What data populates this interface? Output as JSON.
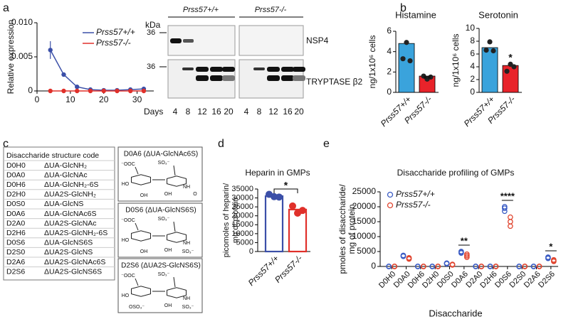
{
  "panels": [
    "a",
    "b",
    "c",
    "d",
    "e"
  ],
  "blot": {
    "kda_label": "kDa",
    "size_markers": [
      "36",
      "36"
    ],
    "genotypes": [
      "Prss57+/+",
      "Prss57-/-"
    ],
    "bands": [
      "NSP4",
      "TRYPTASE β2"
    ],
    "days_label": "Days",
    "days": [
      4,
      8,
      12,
      16,
      20,
      4,
      8,
      12,
      16,
      20
    ]
  },
  "table": {
    "header": "Disaccharide structure code",
    "rows": [
      [
        "D0H0",
        "ΔUA-GlcNH₂"
      ],
      [
        "D0A0",
        "ΔUA-GlcNAc"
      ],
      [
        "D0H6",
        "ΔUA-GlcNH₂-6S"
      ],
      [
        "D2H0",
        "ΔUA2S-GlcNH₂"
      ],
      [
        "D0S0",
        "ΔUA-GlcNS"
      ],
      [
        "D0A6",
        "ΔUA-GlcNAc6S"
      ],
      [
        "D2A0",
        "ΔUA2S-GlcNAc"
      ],
      [
        "D2H6",
        "ΔUA2S-GlcNH₂-6S"
      ],
      [
        "D0S6",
        "ΔUA-GlcNS6S"
      ],
      [
        "D2S0",
        "ΔUA2S-GlcNS"
      ],
      [
        "D2A6",
        "ΔUA2S-GlcNAc6S"
      ],
      [
        "D2S6",
        "ΔUA2S-GlcNS6S"
      ]
    ]
  },
  "structures": [
    {
      "title": "D0A6 (ΔUA-GlcNAc6S)",
      "atoms": [
        "⁻OOC",
        "SO₃⁻",
        "HO",
        "OH",
        "OH",
        "NH",
        "O"
      ]
    },
    {
      "title": "D0S6 (ΔUA-GlcNS6S)",
      "atoms": [
        "⁻OOC",
        "SO₃⁻",
        "HO",
        "OH",
        "OH",
        "NH",
        "SO₃⁻"
      ]
    },
    {
      "title": "D2S6 (ΔUA2S-GlcNS6S)",
      "atoms": [
        "⁻OOC",
        "SO₃⁻",
        "HO",
        "OSO₃⁻",
        "OH",
        "NH",
        "SO₃⁻"
      ]
    }
  ],
  "chart_data": [
    {
      "type": "line",
      "ylabel": [
        "Relative expression"
      ],
      "x": [
        4,
        8,
        12,
        16,
        20,
        24,
        28,
        32
      ],
      "xlim": [
        0,
        35
      ],
      "xticks": [
        0,
        10,
        20,
        30
      ],
      "ylim": [
        0,
        0.01
      ],
      "yticks": [
        0,
        0.005,
        {
          "value": 0.01,
          "label": "0.010"
        }
      ],
      "series": [
        {
          "name": "Prss57+/+",
          "color": "#3b4fa8",
          "values": [
            0.006,
            0.0024,
            0.0006,
            0.0002,
            0.0001,
            0.0001,
            0.0002,
            0.0003
          ],
          "errors": [
            0.0013,
            0.0003,
            0.0001,
            0,
            0,
            0,
            0,
            0
          ]
        },
        {
          "name": "Prss57-/-",
          "color": "#e0302a",
          "values": [
            0,
            0,
            0,
            0,
            0,
            0,
            0,
            0
          ]
        }
      ]
    },
    {
      "type": "bar",
      "title": "Histamine",
      "ylabel": [
        "ng/1x10⁶ cells"
      ],
      "categories": [
        "Prss57+/+",
        "Prss57-/-"
      ],
      "values": [
        4.8,
        1.6
      ],
      "colors": [
        "#3aa3dc",
        "#e8232a"
      ],
      "bar_style": "filled",
      "point_color": "#222",
      "points": [
        [
          4.9,
          3.3,
          3.1
        ],
        [
          1.3,
          1.6,
          1.5
        ]
      ],
      "ylim": [
        0,
        6
      ],
      "yticks": [
        0,
        2,
        4,
        6
      ],
      "annotation": "**"
    },
    {
      "type": "bar",
      "title": "Serotonin",
      "ylabel": [
        "ng/1x10⁶ cells"
      ],
      "categories": [
        "Prss57+/+",
        "Prss57-/-"
      ],
      "values": [
        7,
        4.2
      ],
      "colors": [
        "#3aa3dc",
        "#e8232a"
      ],
      "bar_style": "filled",
      "point_color": "#222",
      "points": [
        [
          7.9,
          6.6,
          6.5
        ],
        [
          4.4,
          3.3,
          4.0
        ]
      ],
      "ylim": [
        0,
        10
      ],
      "yticks": [
        0,
        2,
        4,
        6,
        8,
        10
      ],
      "annotation": "*"
    },
    {
      "type": "bar",
      "title": "Heparin in GMPs",
      "ylabel": [
        "picomoles of heparin/",
        "mg of protein"
      ],
      "categories": [
        "Prss57+/+",
        "Prss57-/-"
      ],
      "values": [
        31000,
        23500
      ],
      "colors": [
        "#3b4fa8",
        "#e0302a"
      ],
      "bar_style": "outline",
      "points": [
        [
          32000,
          30500,
          30700
        ],
        [
          25500,
          23000,
          21500
        ]
      ],
      "ylim": [
        0,
        35000
      ],
      "yticks": [
        0,
        5000,
        10000,
        15000,
        20000,
        25000,
        30000,
        35000
      ],
      "annotation": "*",
      "bracket": true
    },
    {
      "type": "dotplot",
      "title": "Disaccharide profiling of GMPs",
      "ylabel": [
        "pmoles of disaccharide/",
        "mg of protein"
      ],
      "xlabel": "Disaccharide",
      "categories": [
        "D0H0",
        "D0A0",
        "D0H6",
        "D2H0",
        "D0S0",
        "D0A6",
        "D2A0",
        "D2H6",
        "D0S6",
        "D2S0",
        "D2A6",
        "D2S6"
      ],
      "ylim": [
        0,
        25000
      ],
      "yticks": [
        0,
        5000,
        10000,
        15000,
        20000,
        25000
      ],
      "series": [
        {
          "name": "Prss57+/+",
          "color": "#3b5cc4",
          "values": [
            [
              0,
              0,
              0
            ],
            [
              3700,
              3500,
              3400
            ],
            [
              0,
              0,
              0
            ],
            [
              0,
              0,
              0
            ],
            [
              1100,
              900,
              1000
            ],
            [
              5000,
              4700,
              4500
            ],
            [
              0,
              0,
              0
            ],
            [
              0,
              0,
              0
            ],
            [
              20000,
              19500,
              18500
            ],
            [
              0,
              0,
              0
            ],
            [
              0,
              0,
              0
            ],
            [
              3100,
              2900,
              2700
            ]
          ]
        },
        {
          "name": "Prss57-/-",
          "color": "#e0452f",
          "values": [
            [
              0,
              0,
              0
            ],
            [
              2900,
              2700,
              2500
            ],
            [
              0,
              0,
              0
            ],
            [
              0,
              0,
              0
            ],
            [
              700,
              600,
              500
            ],
            [
              4100,
              3600,
              3100
            ],
            [
              0,
              0,
              0
            ],
            [
              0,
              0,
              0
            ],
            [
              16500,
              15000,
              13500
            ],
            [
              0,
              0,
              0
            ],
            [
              0,
              0,
              0
            ],
            [
              2200,
              1900,
              1700
            ]
          ]
        }
      ],
      "annotations": [
        "**",
        "****",
        "*"
      ]
    }
  ]
}
